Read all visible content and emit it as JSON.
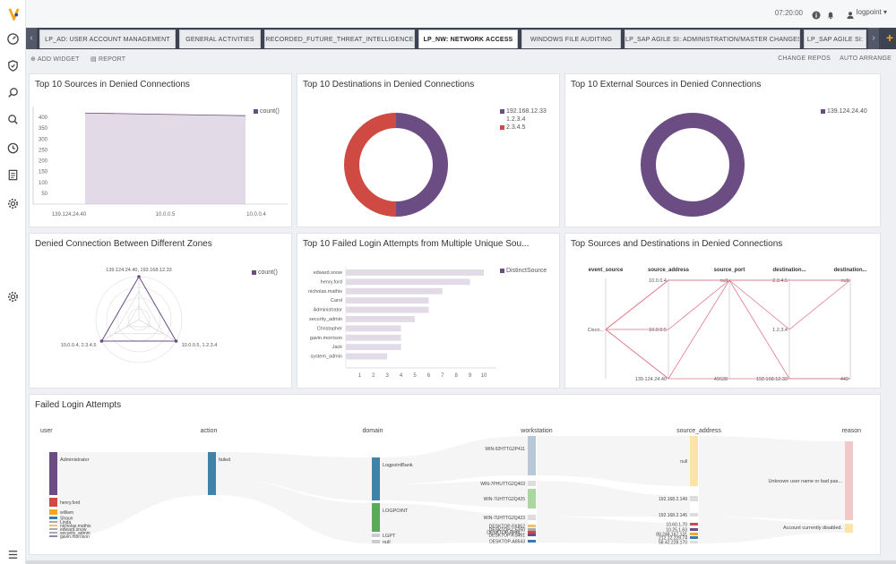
{
  "topbar": {
    "time": "07:20:00",
    "username": "logpoint"
  },
  "tabs": [
    {
      "label": "LP_AD: USER ACCOUNT MANAGEMENT"
    },
    {
      "label": "GENERAL ACTIVITIES"
    },
    {
      "label": "RECORDED_FUTURE_THREAT_INTELLIGENCE"
    },
    {
      "label": "LP_NW: NETWORK ACCESS"
    },
    {
      "label": "WINDOWS FILE AUDITING"
    },
    {
      "label": "LP_SAP AGILE SI: ADMINISTRATION/MASTER CHANGES"
    },
    {
      "label": "LP_SAP AGILE SI:"
    }
  ],
  "toolbar": {
    "add_widget": "ADD WIDGET",
    "report": "REPORT",
    "change_repos": "CHANGE REPOS",
    "auto_arrange": "AUTO ARRANGE"
  },
  "colors": {
    "purple": "#6b4c83",
    "red": "#cf4a43",
    "lavender": "#e2dbe7"
  },
  "icons": [
    "logpoint-logo",
    "dashboard-icon",
    "shield-icon",
    "search-icon",
    "search-icon",
    "incident-icon",
    "report-icon",
    "settings-icon",
    "settings-icon",
    "menu-icon",
    "info-icon",
    "bell-icon",
    "user-icon"
  ],
  "panels": {
    "sources": {
      "title": "Top 10 Sources in Denied Connections"
    },
    "destinations": {
      "title": "Top 10 Destinations in Denied Connections"
    },
    "external": {
      "title": "Top 10 External Sources in Denied Connections"
    },
    "zones": {
      "title": "Denied Connection Between Different Zones"
    },
    "failed_multi": {
      "title": "Top 10 Failed Login Attempts from Multiple Unique Sou..."
    },
    "src_dst": {
      "title": "Top Sources and Destinations in Denied Connections"
    },
    "failed_login": {
      "title": "Failed Login Attempts"
    }
  },
  "chart_data": [
    {
      "type": "area",
      "categories": [
        "139.124.24.40",
        "10.0.0.5",
        "10.0.0.4"
      ],
      "series": [
        {
          "name": "count()",
          "values": [
            420,
            414,
            408
          ]
        }
      ],
      "ylim": [
        0,
        450
      ],
      "yticks": [
        50,
        100,
        150,
        200,
        250,
        300,
        350,
        400
      ]
    },
    {
      "type": "pie",
      "labels": [
        "192.168.12.33",
        "1.2.3.4",
        "2.3.4.5"
      ],
      "values": [
        50,
        0,
        50
      ],
      "colors": [
        "#6b4c83",
        "#cccccc",
        "#cf4a43"
      ]
    },
    {
      "type": "pie",
      "labels": [
        "139.124.24.40"
      ],
      "values": [
        100
      ],
      "colors": [
        "#6b4c83"
      ]
    },
    {
      "type": "radar",
      "axes": [
        "139.124.24.40, 192.168.12.33",
        "10.0.0.5, 1.2.3.4",
        "10.0.0.4, 2.3.4.5"
      ],
      "series": [
        {
          "name": "count()",
          "values": [
            1,
            1,
            1
          ]
        }
      ]
    },
    {
      "type": "bar",
      "categories": [
        "edward.snow",
        "henry.ford",
        "nicholas.mathis",
        "Carol",
        "Administrator",
        "security_admin",
        "Christopher",
        "gavin.morrison",
        "Jack",
        "system_admin"
      ],
      "series": [
        {
          "name": "DistinctSource",
          "values": [
            10,
            9,
            7,
            6,
            6,
            5,
            4,
            4,
            4,
            3
          ]
        }
      ],
      "xticks": [
        1,
        2,
        3,
        4,
        5,
        6,
        7,
        8,
        9,
        10
      ],
      "xlim": [
        0,
        10
      ]
    },
    {
      "type": "parallel",
      "dimensions": [
        "event_source",
        "source_address",
        "source_port",
        "destination...",
        "destination..."
      ],
      "axis_labels": [
        [
          "Cisco..."
        ],
        [
          "10.0.0.4",
          "10.0.0.5",
          "139.124.24.40"
        ],
        [
          "null",
          "49638"
        ],
        [
          "2.3.4.5",
          "1.2.3.4",
          "192.168.12.33"
        ],
        [
          "null",
          "443"
        ]
      ],
      "lines": [
        [
          0,
          0,
          0,
          0,
          0
        ],
        [
          0,
          0,
          0,
          2,
          1
        ],
        [
          0,
          1,
          0,
          1,
          0
        ],
        [
          0,
          2,
          1,
          2,
          1
        ],
        [
          0,
          2,
          0,
          0,
          0
        ]
      ]
    },
    {
      "type": "sankey",
      "dimensions": [
        "user",
        "action",
        "domain",
        "workstation",
        "source_address",
        "reason"
      ],
      "nodes": [
        [
          "Administrator",
          "henry.ford",
          "william",
          "Shaun",
          "Linda",
          "nicholas.mathis",
          "edward.snow",
          "security_admin",
          "gavin.morrison"
        ],
        [
          "failed"
        ],
        [
          "LogpointBank",
          "LOGPOINT",
          "LGPT",
          "null"
        ],
        [
          "WIN-92HTTG2P411",
          "WIN-7PHUTTG2Q403",
          "WIN-7UHTTG2Q425",
          "WIN-7UHTTG2Q423",
          "DESKTOP-FK852",
          "DESKTOP-C5350",
          "DESKTOP-BHBL...",
          "DESKTOP-KS451",
          "DESKTOP-A8543"
        ],
        [
          "null",
          "192.168.2.149",
          "192.168.2.145",
          "10.60.1.70",
          "10.25.1.63",
          "89.248.167.131",
          "212.12.229.74",
          "58.42.228.170"
        ],
        [
          "Unknown user name or bad pas...",
          "Account currently disabled."
        ]
      ]
    }
  ]
}
